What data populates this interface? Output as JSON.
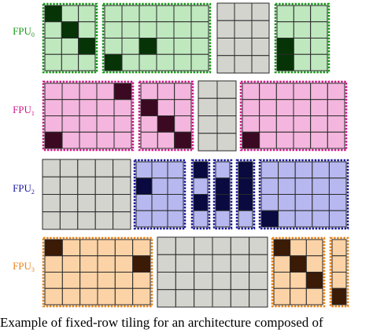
{
  "caption": "Example of fixed-row tiling for an architecture composed of",
  "rows": [
    {
      "label": "FPU",
      "subscript": "0",
      "color": "#1a9a1a",
      "fill": "#bfe8bf",
      "dark": "#063406",
      "tiles": [
        {
          "cols": 3,
          "rows": 4,
          "assigned": true,
          "dark_cells": [
            [
              0,
              0
            ],
            [
              1,
              1
            ],
            [
              2,
              2
            ]
          ]
        },
        {
          "cols": 6,
          "rows": 4,
          "assigned": true,
          "dark_cells": [
            [
              0,
              3
            ],
            [
              2,
              2
            ]
          ]
        },
        {
          "cols": 3,
          "rows": 4,
          "assigned": false,
          "dark_cells": []
        },
        {
          "cols": 3,
          "rows": 4,
          "assigned": true,
          "dark_cells": [
            [
              0,
              2
            ],
            [
              0,
              3
            ]
          ]
        }
      ]
    },
    {
      "label": "FPU",
      "subscript": "1",
      "color": "#d01c8b",
      "fill": "#f4b6de",
      "dark": "#3b0a22",
      "tiles": [
        {
          "cols": 5,
          "rows": 4,
          "assigned": true,
          "dark_cells": [
            [
              4,
              0
            ],
            [
              0,
              3
            ]
          ]
        },
        {
          "cols": 3,
          "rows": 4,
          "assigned": true,
          "dark_cells": [
            [
              0,
              1
            ],
            [
              1,
              2
            ],
            [
              2,
              3
            ]
          ]
        },
        {
          "cols": 2,
          "rows": 4,
          "assigned": false,
          "dark_cells": []
        },
        {
          "cols": 6,
          "rows": 4,
          "assigned": true,
          "dark_cells": [
            [
              0,
              3
            ]
          ]
        }
      ]
    },
    {
      "label": "FPU",
      "subscript": "2",
      "color": "#1a1aa0",
      "fill": "#b8b8f0",
      "dark": "#0a0a40",
      "tiles": [
        {
          "cols": 5,
          "rows": 4,
          "assigned": false,
          "dark_cells": []
        },
        {
          "cols": 3,
          "rows": 4,
          "assigned": true,
          "dark_cells": [
            [
              0,
              1
            ]
          ]
        },
        {
          "cols": 1,
          "rows": 4,
          "assigned": true,
          "dark_cells": [
            [
              0,
              0
            ],
            [
              0,
              2
            ]
          ]
        },
        {
          "cols": 1,
          "rows": 4,
          "assigned": true,
          "dark_cells": [
            [
              0,
              1
            ],
            [
              0,
              2
            ]
          ]
        },
        {
          "cols": 1,
          "rows": 4,
          "assigned": true,
          "dark_cells": [
            [
              0,
              0
            ],
            [
              0,
              1
            ],
            [
              0,
              2
            ]
          ]
        },
        {
          "cols": 5,
          "rows": 4,
          "assigned": true,
          "dark_cells": [
            [
              0,
              3
            ]
          ]
        }
      ]
    },
    {
      "label": "FPU",
      "subscript": "3",
      "color": "#e8841a",
      "fill": "#fcd3a6",
      "dark": "#3b1a06",
      "tiles": [
        {
          "cols": 6,
          "rows": 4,
          "assigned": true,
          "dark_cells": [
            [
              0,
              0
            ],
            [
              5,
              1
            ]
          ]
        },
        {
          "cols": 6,
          "rows": 4,
          "assigned": false,
          "dark_cells": []
        },
        {
          "cols": 3,
          "rows": 4,
          "assigned": true,
          "dark_cells": [
            [
              0,
              0
            ],
            [
              1,
              1
            ],
            [
              2,
              2
            ]
          ]
        },
        {
          "cols": 1,
          "rows": 4,
          "assigned": true,
          "dark_cells": [
            [
              0,
              3
            ]
          ]
        }
      ]
    }
  ],
  "unassigned_fill": "#d4d4cf",
  "grid_line_color": "#2a2a2a"
}
